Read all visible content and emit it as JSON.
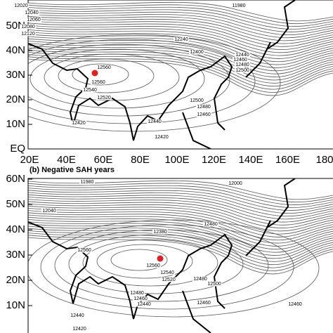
{
  "panels": [
    {
      "title": null,
      "x_labels": [
        "20E",
        "40E",
        "60E",
        "80E",
        "100E",
        "120E",
        "140E",
        "160E",
        "180"
      ],
      "y_labels": [
        "EQ",
        "10N",
        "20N",
        "30N",
        "40N",
        "50N"
      ],
      "contour_labels": [
        "12020",
        "12040",
        "12060",
        "12080",
        "12120",
        "12560",
        "12560",
        "12540",
        "12520",
        "12480",
        "12500",
        "12460",
        "12440",
        "12420",
        "12420",
        "12240",
        "12400",
        "12440",
        "12460",
        "12480",
        "12500",
        "11980"
      ]
    },
    {
      "title": "(b) Negative SAH years",
      "x_labels": [],
      "y_labels": [
        "60N",
        "50N",
        "40N",
        "30N",
        "20N",
        "10N"
      ],
      "contour_labels": [
        "12560",
        "12560",
        "12540",
        "12520",
        "12480",
        "12460",
        "12440",
        "12500",
        "12480",
        "12460",
        "12420",
        "12440",
        "12460",
        "12380",
        "12480",
        "11980",
        "12000",
        "12040"
      ]
    }
  ]
}
